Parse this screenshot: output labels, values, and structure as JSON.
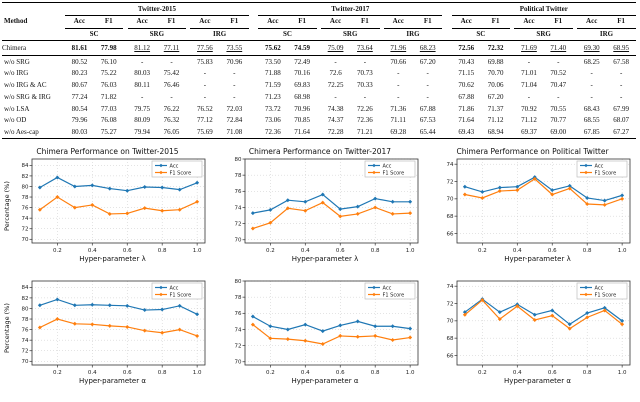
{
  "colors": {
    "acc": "#1f77b4",
    "f1": "#ff7f0e",
    "grid": "#c8c8c8",
    "frame": "#333333"
  },
  "table": {
    "method_header": "Method",
    "datasets": [
      "Twitter-2015",
      "Twitter-2017",
      "Political Twitter"
    ],
    "subgroups": [
      "SC",
      "SRG",
      "IRG"
    ],
    "metrics": [
      "Acc",
      "F1"
    ],
    "rows": [
      {
        "method": "Chimera",
        "values": [
          "81.61",
          "77.98",
          "81.12",
          "77.11",
          "77.56",
          "73.55",
          "75.62",
          "74.59",
          "75.09",
          "73.64",
          "71.96",
          "68.23",
          "72.56",
          "72.32",
          "71.69",
          "71.40",
          "69.30",
          "68.95"
        ],
        "bold": [
          0,
          1,
          6,
          7,
          12,
          13
        ],
        "underline": [
          2,
          3,
          4,
          5,
          8,
          9,
          10,
          11,
          14,
          15,
          16,
          17
        ]
      },
      {
        "method": "w/o SRG",
        "values": [
          "80.52",
          "76.10",
          "-",
          "-",
          "75.83",
          "70.96",
          "73.50",
          "72.49",
          "-",
          "-",
          "70.66",
          "67.20",
          "70.43",
          "69.88",
          "-",
          "-",
          "68.25",
          "67.58"
        ]
      },
      {
        "method": "w/o IRG",
        "values": [
          "80.23",
          "75.22",
          "80.03",
          "75.42",
          "-",
          "-",
          "71.88",
          "70.16",
          "72.6",
          "70.73",
          "-",
          "-",
          "71.15",
          "70.70",
          "71.01",
          "70.52",
          "-",
          "-"
        ]
      },
      {
        "method": "w/o IRG & AC",
        "values": [
          "80.67",
          "76.03",
          "80.11",
          "76.46",
          "-",
          "-",
          "71.59",
          "69.83",
          "72.25",
          "70.33",
          "-",
          "-",
          "70.62",
          "70.06",
          "71.04",
          "70.47",
          "-",
          "-"
        ]
      },
      {
        "method": "w/o SRG & IRG",
        "values": [
          "77.24",
          "71.82",
          "-",
          "-",
          "-",
          "-",
          "71.23",
          "68.98",
          "-",
          "-",
          "-",
          "-",
          "67.88",
          "67.20",
          "-",
          "-",
          "-",
          "-"
        ]
      },
      {
        "method": "w/o LSA",
        "values": [
          "80.54",
          "77.03",
          "79.75",
          "76.22",
          "76.52",
          "72.03",
          "73.72",
          "70.96",
          "74.38",
          "72.26",
          "71.36",
          "67.88",
          "71.86",
          "71.37",
          "70.92",
          "70.55",
          "68.43",
          "67.99"
        ]
      },
      {
        "method": "w/o OD",
        "values": [
          "79.96",
          "76.08",
          "80.09",
          "76.32",
          "77.12",
          "72.84",
          "73.06",
          "70.85",
          "74.37",
          "72.36",
          "71.11",
          "67.53",
          "71.64",
          "71.12",
          "71.12",
          "70.77",
          "68.55",
          "68.07"
        ]
      },
      {
        "method": "w/o Aes-cap",
        "values": [
          "80.03",
          "75.27",
          "79.94",
          "76.05",
          "75.69",
          "71.08",
          "72.36",
          "71.64",
          "72.28",
          "71.21",
          "69.28",
          "65.44",
          "69.43",
          "68.94",
          "69.37",
          "69.00",
          "67.85",
          "67.27"
        ]
      }
    ]
  },
  "chart_data": [
    {
      "type": "line",
      "title": "Chimera Performance on Twitter-2015",
      "xlabel": "Hyper-parameter λ",
      "ylabel": "Percentage (%)",
      "x": [
        0.1,
        0.2,
        0.3,
        0.4,
        0.5,
        0.6,
        0.7,
        0.8,
        0.9,
        1.0
      ],
      "xticks": [
        0.2,
        0.4,
        0.6,
        0.8,
        1.0
      ],
      "yticks": [
        70,
        72,
        74,
        76,
        78,
        80,
        82,
        84
      ],
      "ylim": [
        69.3,
        85.2
      ],
      "xlim": [
        0.055,
        1.045
      ],
      "grid": true,
      "legend_position": "upper right",
      "series": [
        {
          "name": "Acc",
          "color": "#1f77b4",
          "values": [
            79.8,
            81.7,
            80.0,
            80.2,
            79.6,
            79.2,
            79.9,
            79.8,
            79.4,
            80.7
          ]
        },
        {
          "name": "F1 Score",
          "color": "#ff7f0e",
          "values": [
            75.6,
            78.0,
            76.0,
            76.5,
            74.8,
            74.9,
            75.9,
            75.4,
            75.6,
            77.1
          ]
        }
      ]
    },
    {
      "type": "line",
      "title": "Chimera Performance on Twitter-2017",
      "xlabel": "Hyper-parameter λ",
      "ylabel": "",
      "x": [
        0.1,
        0.2,
        0.3,
        0.4,
        0.5,
        0.6,
        0.7,
        0.8,
        0.9,
        1.0
      ],
      "xticks": [
        0.2,
        0.4,
        0.6,
        0.8,
        1.0
      ],
      "yticks": [
        70,
        72,
        74,
        76,
        78,
        80
      ],
      "ylim": [
        69.6,
        80.0
      ],
      "xlim": [
        0.055,
        1.045
      ],
      "grid": true,
      "legend_position": "upper right",
      "series": [
        {
          "name": "Acc",
          "color": "#1f77b4",
          "values": [
            73.3,
            73.7,
            74.9,
            74.7,
            75.6,
            73.8,
            74.1,
            75.1,
            74.7,
            74.7
          ]
        },
        {
          "name": "F1 Score",
          "color": "#ff7f0e",
          "values": [
            71.4,
            72.1,
            73.9,
            73.6,
            74.6,
            72.9,
            73.2,
            74.0,
            73.2,
            73.3
          ]
        }
      ]
    },
    {
      "type": "line",
      "title": "Chimera Performance on Political Twitter",
      "xlabel": "Hyper-parameter λ",
      "ylabel": "",
      "x": [
        0.1,
        0.2,
        0.3,
        0.4,
        0.5,
        0.6,
        0.7,
        0.8,
        0.9,
        1.0
      ],
      "xticks": [
        0.2,
        0.4,
        0.6,
        0.8,
        1.0
      ],
      "yticks": [
        66,
        68,
        70,
        72,
        74
      ],
      "ylim": [
        64.9,
        74.6
      ],
      "xlim": [
        0.055,
        1.045
      ],
      "grid": true,
      "legend_position": "upper right",
      "series": [
        {
          "name": "Acc",
          "color": "#1f77b4",
          "values": [
            71.4,
            70.8,
            71.3,
            71.4,
            72.5,
            71.0,
            71.5,
            70.1,
            69.8,
            70.4
          ]
        },
        {
          "name": "F1 Score",
          "color": "#ff7f0e",
          "values": [
            70.5,
            70.1,
            70.9,
            71.0,
            72.3,
            70.5,
            71.2,
            69.4,
            69.3,
            70.0
          ]
        }
      ]
    },
    {
      "type": "line",
      "title": "",
      "xlabel": "Hyper-parameter α",
      "ylabel": "Percentage (%)",
      "x": [
        0.1,
        0.2,
        0.3,
        0.4,
        0.5,
        0.6,
        0.7,
        0.8,
        0.9,
        1.0
      ],
      "xticks": [
        0.2,
        0.4,
        0.6,
        0.8,
        1.0
      ],
      "yticks": [
        70,
        72,
        74,
        76,
        78,
        80,
        82,
        84
      ],
      "ylim": [
        69.3,
        85.2
      ],
      "xlim": [
        0.055,
        1.045
      ],
      "grid": true,
      "legend_position": "upper right",
      "series": [
        {
          "name": "Acc",
          "color": "#1f77b4",
          "values": [
            80.6,
            81.7,
            80.6,
            80.7,
            80.6,
            80.5,
            79.7,
            79.8,
            80.5,
            78.9
          ]
        },
        {
          "name": "F1 Score",
          "color": "#ff7f0e",
          "values": [
            76.4,
            78.0,
            77.1,
            77.0,
            76.7,
            76.5,
            75.8,
            75.4,
            76.0,
            74.8
          ]
        }
      ]
    },
    {
      "type": "line",
      "title": "",
      "xlabel": "Hyper-parameter α",
      "ylabel": "",
      "x": [
        0.1,
        0.2,
        0.3,
        0.4,
        0.5,
        0.6,
        0.7,
        0.8,
        0.9,
        1.0
      ],
      "xticks": [
        0.2,
        0.4,
        0.6,
        0.8,
        1.0
      ],
      "yticks": [
        70,
        72,
        74,
        76,
        78,
        80
      ],
      "ylim": [
        69.6,
        80.0
      ],
      "xlim": [
        0.055,
        1.045
      ],
      "grid": true,
      "legend_position": "upper right",
      "series": [
        {
          "name": "Acc",
          "color": "#1f77b4",
          "values": [
            75.6,
            74.4,
            74.0,
            74.6,
            73.8,
            74.5,
            75.0,
            74.4,
            74.4,
            74.1
          ]
        },
        {
          "name": "F1 Score",
          "color": "#ff7f0e",
          "values": [
            74.6,
            72.9,
            72.8,
            72.6,
            72.2,
            73.2,
            73.1,
            73.2,
            72.7,
            73.0
          ]
        }
      ]
    },
    {
      "type": "line",
      "title": "",
      "xlabel": "Hyper-parameter α",
      "ylabel": "",
      "x": [
        0.1,
        0.2,
        0.3,
        0.4,
        0.5,
        0.6,
        0.7,
        0.8,
        0.9,
        1.0
      ],
      "xticks": [
        0.2,
        0.4,
        0.6,
        0.8,
        1.0
      ],
      "yticks": [
        66,
        68,
        70,
        72,
        74
      ],
      "ylim": [
        64.9,
        74.6
      ],
      "xlim": [
        0.055,
        1.045
      ],
      "grid": true,
      "legend_position": "upper right",
      "series": [
        {
          "name": "Acc",
          "color": "#1f77b4",
          "values": [
            71.0,
            72.5,
            71.0,
            71.9,
            70.7,
            71.2,
            69.6,
            70.9,
            71.5,
            70.0
          ]
        },
        {
          "name": "F1 Score",
          "color": "#ff7f0e",
          "values": [
            70.7,
            72.4,
            70.2,
            71.7,
            70.1,
            70.6,
            69.1,
            70.4,
            71.2,
            69.6
          ]
        }
      ]
    }
  ]
}
